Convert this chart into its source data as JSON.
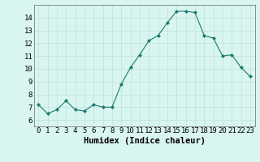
{
  "x": [
    0,
    1,
    2,
    3,
    4,
    5,
    6,
    7,
    8,
    9,
    10,
    11,
    12,
    13,
    14,
    15,
    16,
    17,
    18,
    19,
    20,
    21,
    22,
    23
  ],
  "y": [
    7.2,
    6.5,
    6.8,
    7.5,
    6.8,
    6.7,
    7.2,
    7.0,
    7.0,
    8.8,
    10.1,
    11.1,
    12.2,
    12.6,
    13.6,
    14.5,
    14.5,
    14.4,
    12.6,
    12.4,
    11.0,
    11.1,
    10.1,
    9.4
  ],
  "line_color": "#1a7a6e",
  "marker": "D",
  "marker_size": 2.0,
  "bg_color": "#d9f5f0",
  "grid_color": "#c0e0dc",
  "xlabel": "Humidex (Indice chaleur)",
  "xlabel_fontsize": 7.5,
  "tick_fontsize": 6.5,
  "xlim": [
    -0.5,
    23.5
  ],
  "ylim": [
    5.5,
    15.0
  ],
  "yticks": [
    6,
    7,
    8,
    9,
    10,
    11,
    12,
    13,
    14
  ],
  "xticks": [
    0,
    1,
    2,
    3,
    4,
    5,
    6,
    7,
    8,
    9,
    10,
    11,
    12,
    13,
    14,
    15,
    16,
    17,
    18,
    19,
    20,
    21,
    22,
    23
  ]
}
